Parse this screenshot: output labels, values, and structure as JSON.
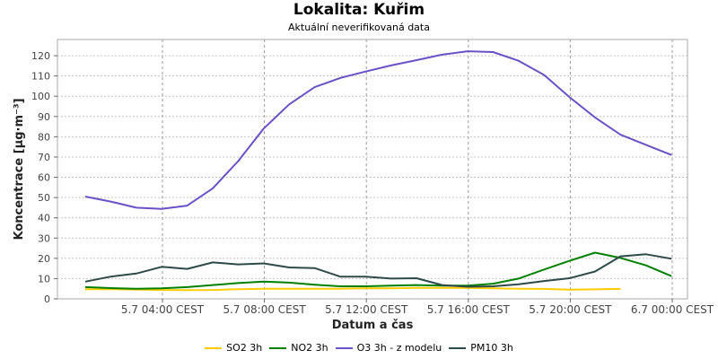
{
  "chart_data": {
    "type": "line",
    "title": "Lokalita: Kuřim",
    "subtitle": "Aktuální neverifikovaná data",
    "xlabel": "Datum a čas",
    "ylabel": "Koncentrace [µg·m⁻³]",
    "x_tick_labels": [
      "5.7 04:00 CEST",
      "5.7 08:00 CEST",
      "5.7 12:00 CEST",
      "5.7 16:00 CEST",
      "5.7 20:00 CEST",
      "6.7 00:00 CEST"
    ],
    "ylim": [
      0,
      128
    ],
    "y_ticks": [
      0,
      10,
      20,
      30,
      40,
      50,
      60,
      70,
      80,
      90,
      100,
      110,
      120
    ],
    "grid": true,
    "legend_position": "bottom",
    "series": [
      {
        "name": "SO2 3h",
        "color": "#FFCC00",
        "values": [
          4.8,
          4.8,
          4.6,
          4.4,
          4.3,
          4.4,
          4.8,
          5.0,
          5.0,
          5.0,
          5.0,
          5.2,
          5.2,
          5.4,
          5.4,
          5.4,
          5.2,
          5.0,
          4.9,
          4.5,
          4.7,
          4.9
        ]
      },
      {
        "name": "NO2 3h",
        "color": "#008000",
        "values": [
          5.8,
          5.3,
          5.0,
          5.2,
          5.8,
          6.8,
          7.8,
          8.5,
          8.0,
          7.0,
          6.2,
          6.2,
          6.5,
          6.8,
          6.5,
          6.5,
          7.5,
          10.0,
          14.5,
          18.8,
          22.8,
          20.2,
          16.5,
          11.2
        ]
      },
      {
        "name": "O3 3h - z modelu",
        "color": "#6A51C6",
        "values": [
          50.5,
          48.0,
          45.0,
          44.4,
          46.0,
          54.5,
          68.0,
          84.0,
          96.0,
          104.5,
          109.0,
          112.2,
          115.2,
          117.8,
          120.5,
          122.2,
          121.8,
          117.5,
          110.5,
          99.5,
          89.5,
          81.0,
          76.0,
          71.0
        ]
      },
      {
        "name": "PM10 3h",
        "color": "#2E4A48",
        "values": [
          8.5,
          11.0,
          12.5,
          15.8,
          14.8,
          18.0,
          17.0,
          17.5,
          15.5,
          15.2,
          11.0,
          11.0,
          10.0,
          10.2,
          6.8,
          6.0,
          6.2,
          7.2,
          8.8,
          10.2,
          13.5,
          21.0,
          22.0,
          19.8
        ]
      }
    ]
  }
}
